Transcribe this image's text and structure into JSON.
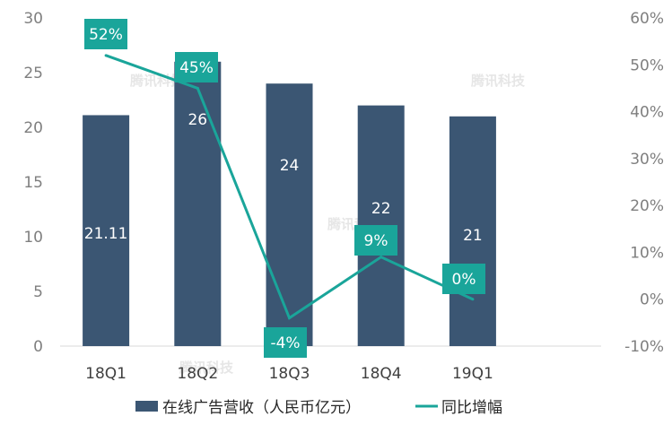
{
  "colors": {
    "bar": "#3b5673",
    "line": "#1aa59a",
    "label_box": "#1aa59a",
    "axis_text": "#7f7f7f",
    "baseline": "#d9d9d9"
  },
  "watermark": "腾讯科技",
  "chart_data": {
    "type": "bar",
    "categories": [
      "18Q1",
      "18Q2",
      "18Q3",
      "18Q4",
      "19Q1"
    ],
    "series": [
      {
        "name": "在线广告营收（人民币亿元）",
        "type": "bar",
        "axis": "left",
        "values": [
          21.11,
          26,
          24,
          22,
          21
        ],
        "labels": [
          "21.11",
          "26",
          "24",
          "22",
          "21"
        ]
      },
      {
        "name": "同比增幅",
        "type": "line",
        "axis": "right",
        "values": [
          52,
          45,
          -4,
          9,
          0
        ],
        "labels": [
          "52%",
          "45%",
          "-4%",
          "9%",
          "0%"
        ]
      }
    ],
    "y_left": {
      "min": 0,
      "max": 30,
      "ticks": [
        "0",
        "5",
        "10",
        "15",
        "20",
        "25",
        "30"
      ]
    },
    "y_right": {
      "min": -10,
      "max": 60,
      "ticks": [
        "-10%",
        "0%",
        "10%",
        "20%",
        "30%",
        "40%",
        "50%",
        "60%"
      ]
    },
    "grid": false,
    "legend_position": "bottom"
  }
}
